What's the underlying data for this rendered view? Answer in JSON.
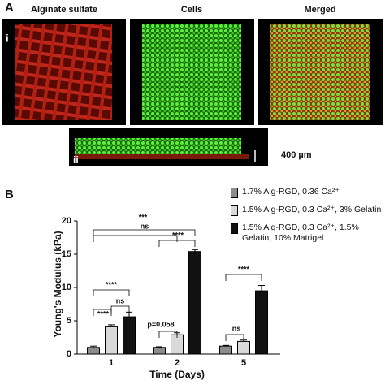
{
  "panel_a": {
    "label": "A",
    "titles": [
      "Alginate sulfate",
      "Cells",
      "Merged"
    ],
    "sub_labels": [
      "i",
      "ii"
    ],
    "scale": "400 µm"
  },
  "panel_b": {
    "label": "B"
  },
  "chart_data": {
    "type": "bar",
    "categories": [
      "1",
      "2",
      "5"
    ],
    "xlabel": "Time (Days)",
    "ylabel": "Young's Modulus (kPa)",
    "ylim": [
      0,
      20
    ],
    "yticks": [
      0,
      5,
      10,
      15,
      20
    ],
    "series": [
      {
        "name": "1.7% Alg-RGD, 0.36 Ca²⁺",
        "color": "#8c8c8c",
        "values": [
          1.0,
          1.0,
          1.2
        ],
        "errors": [
          0.2,
          0.1,
          0.1
        ]
      },
      {
        "name": "1.5% Alg-RGD, 0.3 Ca²⁺, 3% Gelatin",
        "color": "#d9d9d9",
        "values": [
          4.1,
          2.9,
          1.9
        ],
        "errors": [
          0.3,
          0.3,
          0.2
        ]
      },
      {
        "name": "1.5% Alg-RGD, 0.3 Ca²⁺, 1.5% Gelatin, 10% Matrigel",
        "color": "#111111",
        "values": [
          5.6,
          15.4,
          9.5
        ],
        "errors": [
          0.7,
          0.3,
          0.8
        ]
      }
    ],
    "annotations": [
      "****",
      "****",
      "ns",
      "***",
      "ns",
      "****",
      "p=0.058",
      "****",
      "ns"
    ]
  }
}
